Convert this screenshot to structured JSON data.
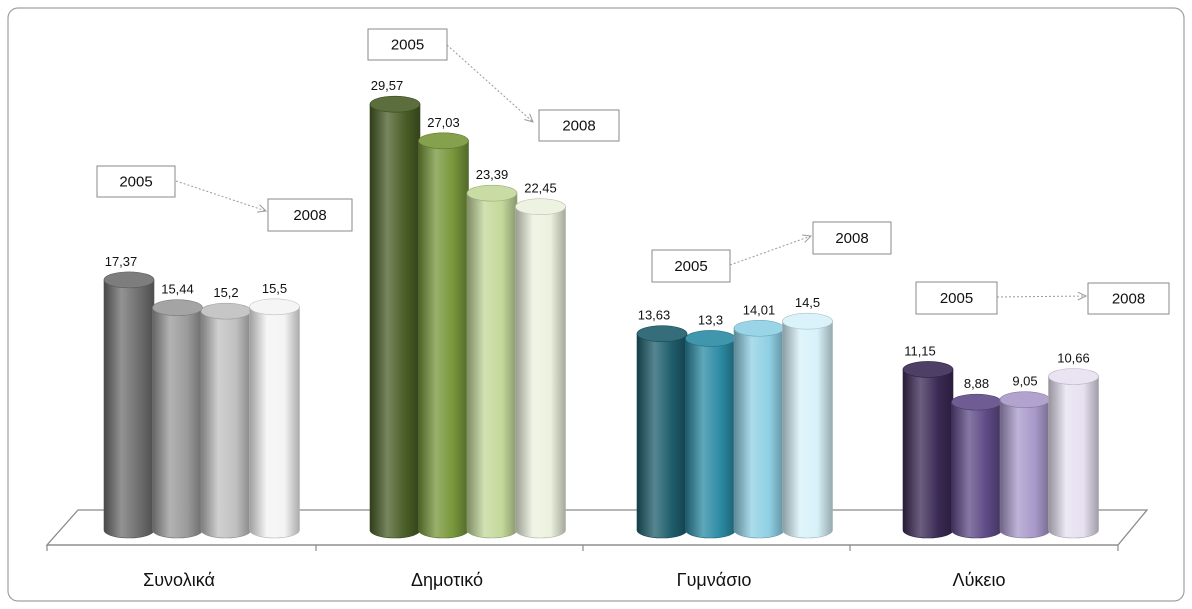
{
  "chart_data": {
    "type": "bar",
    "style": "3d-cylinder",
    "categories": [
      "Συνολικά",
      "Δημοτικό",
      "Γυμνάσιο",
      "Λύκειο"
    ],
    "x_start_label": "2005",
    "x_end_label": "2008",
    "series_per_category": 4,
    "values": [
      [
        17.37,
        15.44,
        15.2,
        15.5
      ],
      [
        29.57,
        27.03,
        23.39,
        22.45
      ],
      [
        13.63,
        13.3,
        14.01,
        14.5
      ],
      [
        11.15,
        8.88,
        9.05,
        10.66
      ]
    ],
    "data_labels": [
      [
        "17,37",
        "15,44",
        "15,2",
        "15,5"
      ],
      [
        "29,57",
        "27,03",
        "23,39",
        "22,45"
      ],
      [
        "13,63",
        "13,3",
        "14,01",
        "14,5"
      ],
      [
        "11,15",
        "8,88",
        "9,05",
        "10,66"
      ]
    ],
    "annotations": [
      {
        "category": "Συνολικά",
        "from": "2005",
        "to": "2008"
      },
      {
        "category": "Δημοτικό",
        "from": "2005",
        "to": "2008"
      },
      {
        "category": "Γυμνάσιο",
        "from": "2005",
        "to": "2008"
      },
      {
        "category": "Λύκειο",
        "from": "2005",
        "to": "2008"
      }
    ],
    "colors": [
      [
        "#6f6f6f",
        "#9a9a9a",
        "#c0c0c0",
        "#f4f4f4"
      ],
      [
        "#4a5e27",
        "#77963a",
        "#c3d89a",
        "#ecf1de"
      ],
      [
        "#1e5d6b",
        "#2b8aa3",
        "#8fd0e4",
        "#d6f1f8"
      ],
      [
        "#3a2a55",
        "#5e4a86",
        "#a899c9",
        "#e6e0f0"
      ]
    ],
    "ylim": [
      0,
      30
    ],
    "grid": false,
    "legend": "none",
    "title": "",
    "xlabel": "",
    "ylabel": ""
  }
}
